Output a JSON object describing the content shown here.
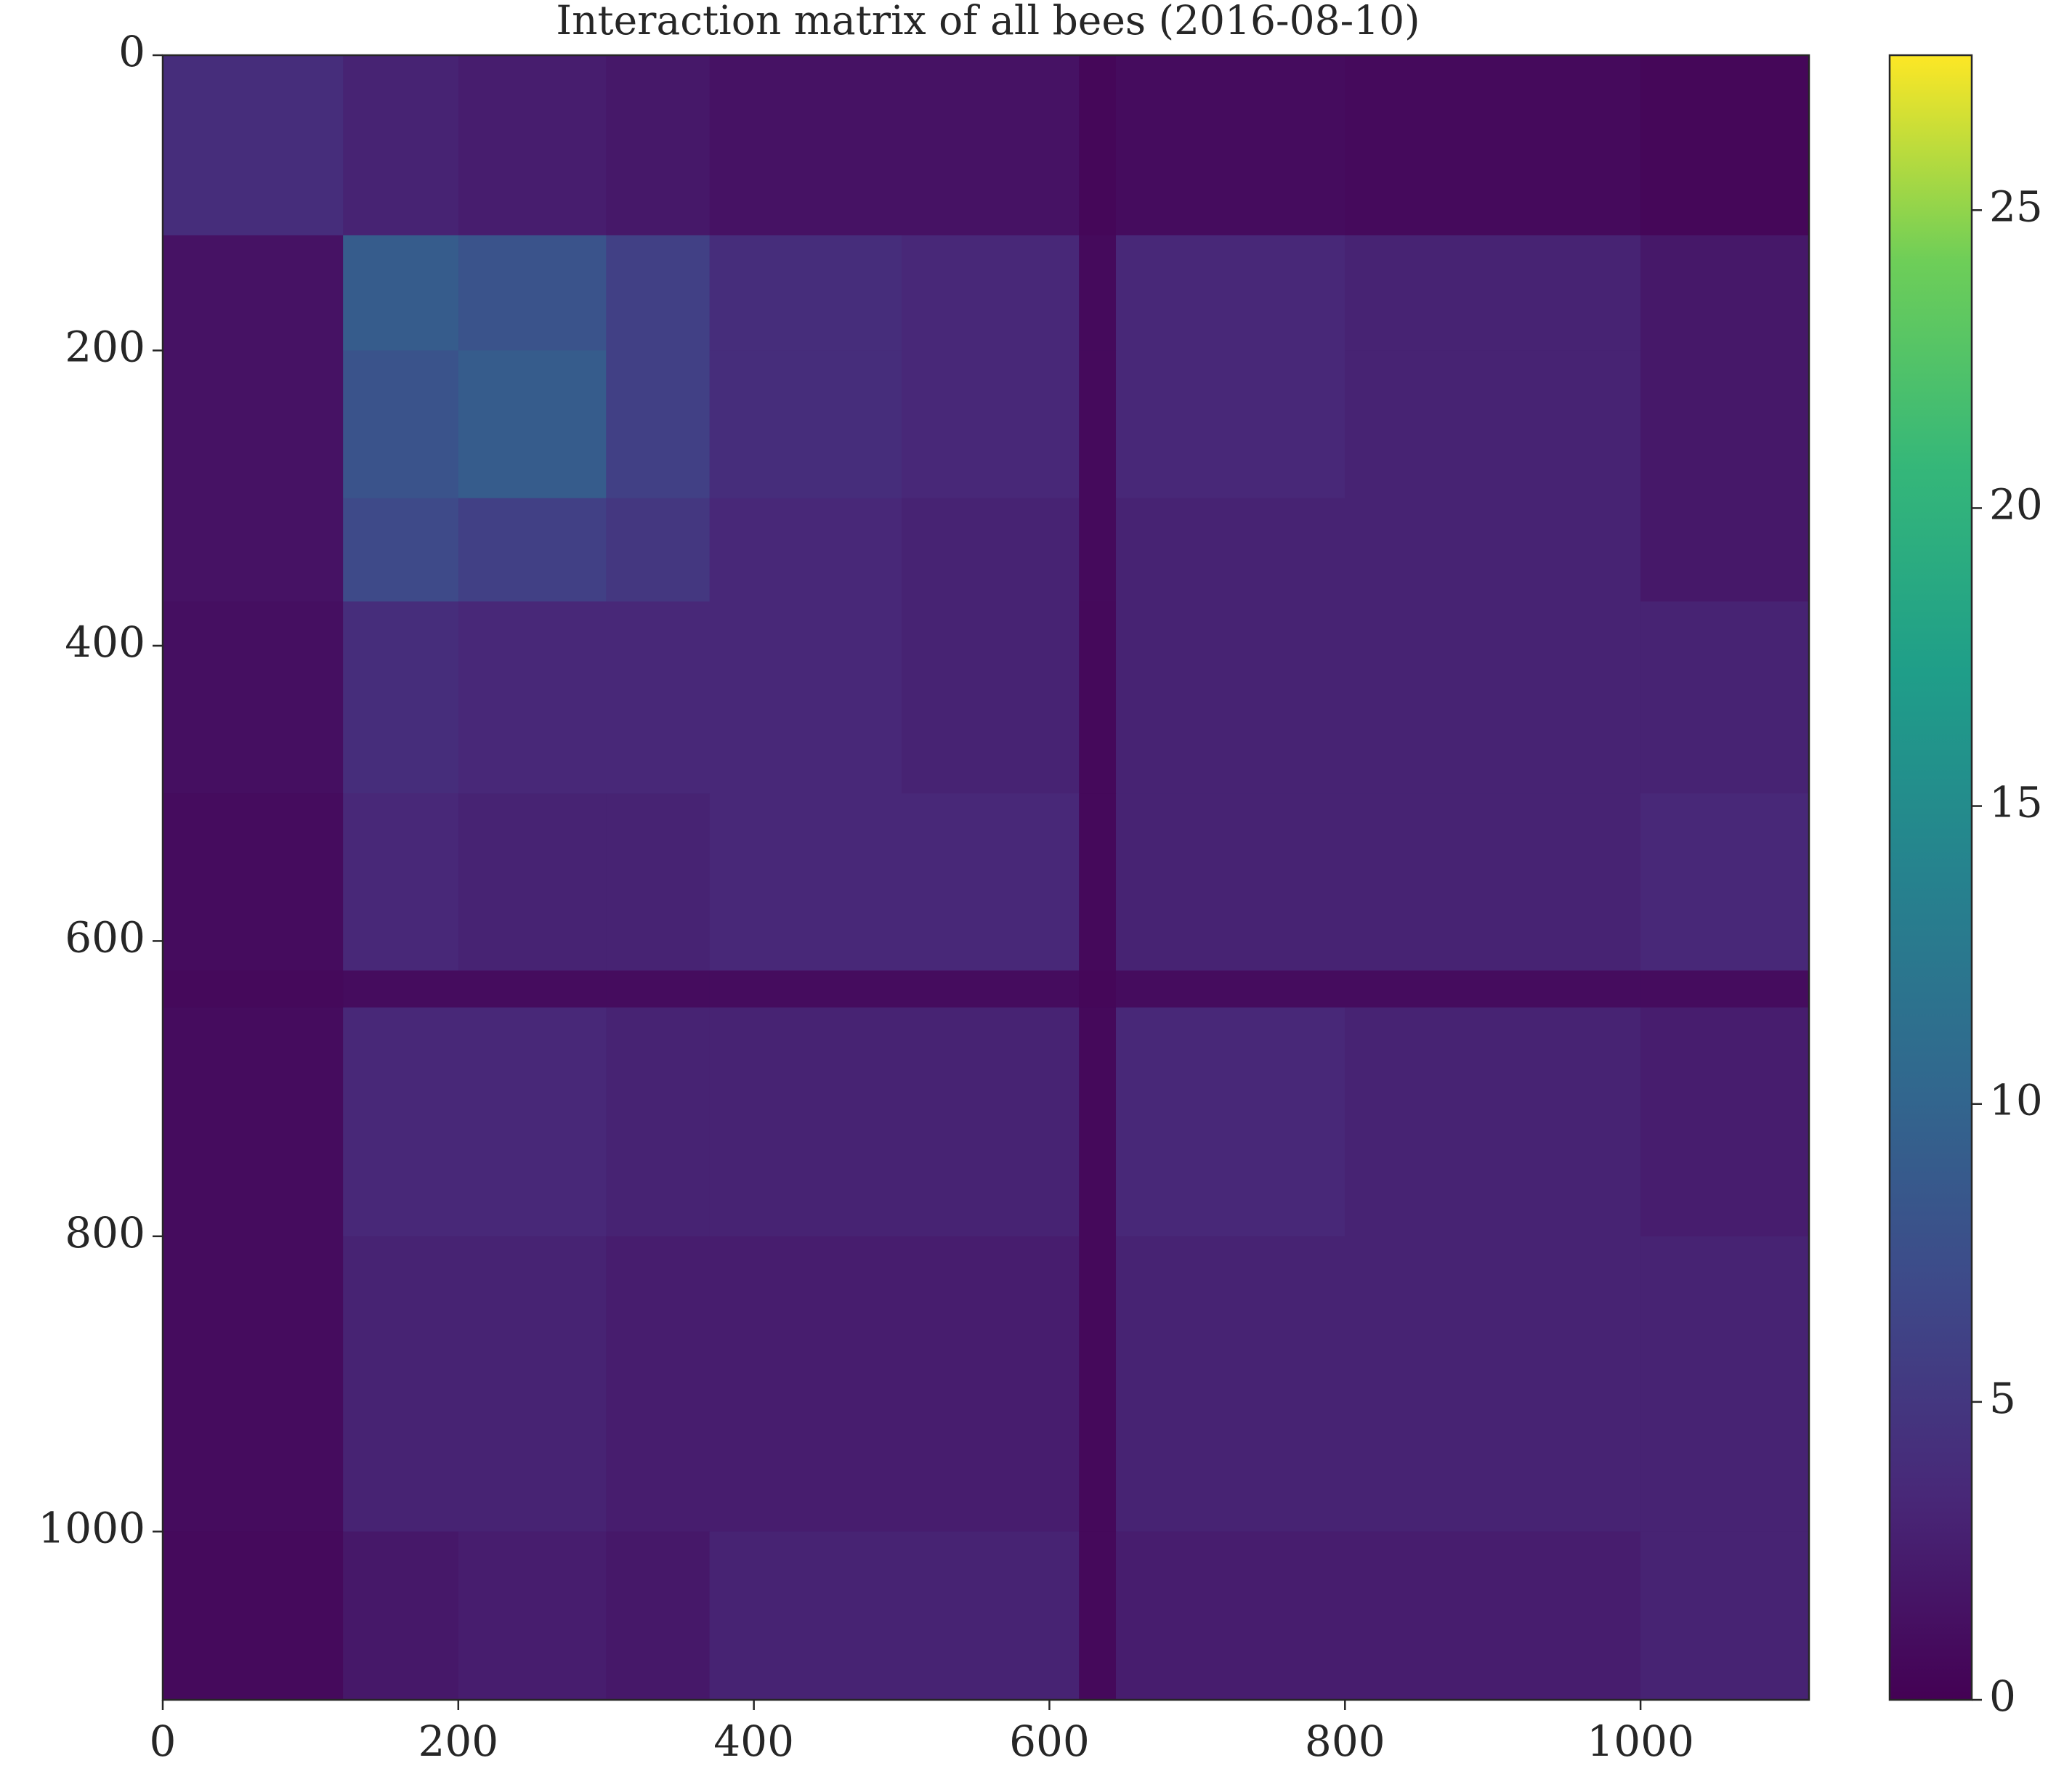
{
  "chart_data": {
    "type": "heatmap",
    "title": "Interaction matrix of all bees (2016-08-10)",
    "x_edges": [
      0,
      122,
      200,
      300,
      370,
      500,
      620,
      645,
      800,
      1000,
      1114
    ],
    "y_edges": [
      0,
      122,
      200,
      300,
      370,
      500,
      620,
      645,
      800,
      1000,
      1114
    ],
    "z": [
      [
        4,
        3,
        2.5,
        2,
        1.5,
        1.5,
        0.5,
        1,
        0.8,
        0.5
      ],
      [
        1.5,
        9,
        8,
        6,
        4,
        3.5,
        0.8,
        3.5,
        3,
        2
      ],
      [
        1.5,
        8,
        9,
        6,
        4,
        3.5,
        0.8,
        3.5,
        3,
        2
      ],
      [
        1.5,
        7,
        6,
        5,
        3.5,
        3,
        0.8,
        3,
        3,
        2
      ],
      [
        1.2,
        4,
        3.5,
        3.5,
        3.5,
        3,
        0.7,
        3,
        3,
        3
      ],
      [
        1,
        3.5,
        3,
        3,
        3.5,
        3.5,
        0.7,
        3,
        3,
        3.5
      ],
      [
        0.7,
        1,
        1,
        1,
        1,
        1,
        0.5,
        1,
        1,
        1
      ],
      [
        1,
        3.5,
        3.5,
        3,
        3,
        3,
        0.7,
        3.5,
        3,
        2.5
      ],
      [
        1,
        3,
        3,
        2.5,
        2.5,
        2.5,
        0.7,
        3,
        3,
        3
      ],
      [
        0.8,
        2,
        2.5,
        2,
        3,
        3,
        0.7,
        2.5,
        2.5,
        3
      ]
    ],
    "xlim": [
      0,
      1114
    ],
    "ylim": [
      1114,
      0
    ],
    "xticks": [
      0,
      200,
      400,
      600,
      800,
      1000
    ],
    "yticks": [
      0,
      200,
      400,
      600,
      800,
      1000
    ],
    "colormap": "viridis",
    "clim": [
      0,
      27.6
    ],
    "cticks": [
      0,
      5,
      10,
      15,
      20,
      25
    ]
  }
}
